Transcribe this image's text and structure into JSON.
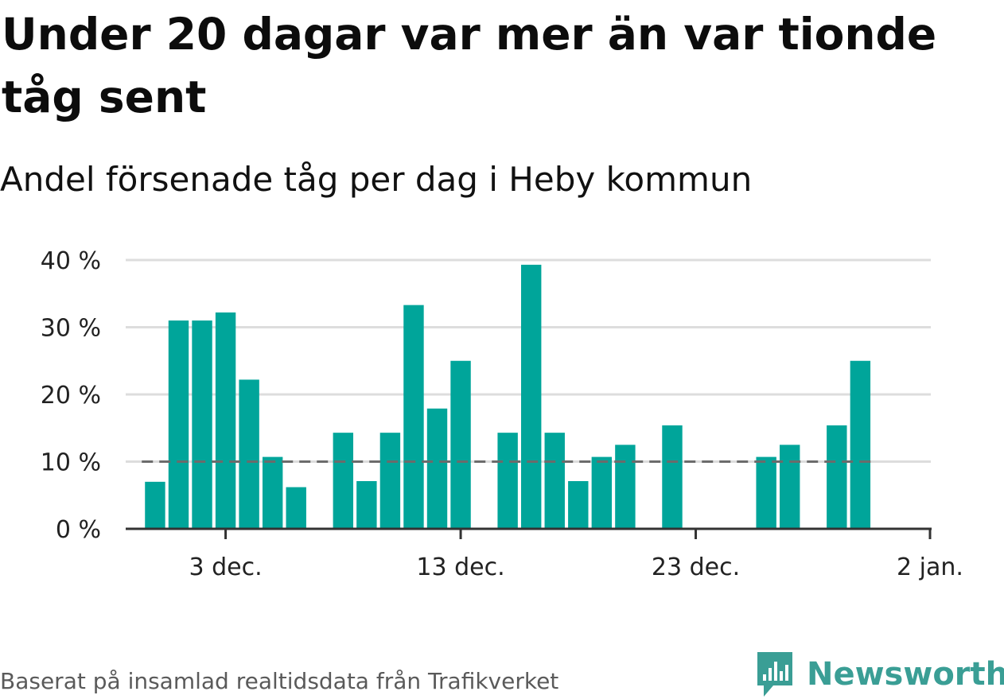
{
  "title": "Under 20 dagar var mer än var tionde tåg sent",
  "subtitle": "Andel försenade tåg per dag i Heby kommun",
  "source": "Baserat på insamlad realtidsdata från Trafikverket",
  "brand": {
    "name": "Newsworthy",
    "icon": "newsworthy-logo-icon",
    "color": "#3a9e95"
  },
  "colors": {
    "bar": "#00a59a",
    "reference": "#6b6b6b",
    "grid": "#dddddd",
    "axis": "#333333"
  },
  "chart_data": {
    "type": "bar",
    "title": "Under 20 dagar var mer än var tionde tåg sent",
    "subtitle": "Andel försenade tåg per dag i Heby kommun",
    "xlabel": "",
    "ylabel": "",
    "x_range": [
      "2024-11-29",
      "2025-01-02"
    ],
    "ylim": [
      0,
      40
    ],
    "yticks": [
      0,
      10,
      20,
      30,
      40
    ],
    "ytick_labels": [
      "0 %",
      "10 %",
      "20 %",
      "30 %",
      "40 %"
    ],
    "xticks": [
      {
        "date": "2024-12-03",
        "label": "3 dec."
      },
      {
        "date": "2024-12-13",
        "label": "13 dec."
      },
      {
        "date": "2024-12-23",
        "label": "23 dec."
      },
      {
        "date": "2025-01-02",
        "label": "2 jan."
      }
    ],
    "reference_line": {
      "value": 10,
      "style": "dashed"
    },
    "grid": true,
    "legend": "none",
    "series": [
      {
        "points": [
          {
            "date": "2024-11-30",
            "value": 7
          },
          {
            "date": "2024-12-01",
            "value": 31
          },
          {
            "date": "2024-12-02",
            "value": 31
          },
          {
            "date": "2024-12-03",
            "value": 32.2
          },
          {
            "date": "2024-12-04",
            "value": 22.2
          },
          {
            "date": "2024-12-05",
            "value": 10.7
          },
          {
            "date": "2024-12-06",
            "value": 6.2
          },
          {
            "date": "2024-12-07",
            "value": 0
          },
          {
            "date": "2024-12-08",
            "value": 14.3
          },
          {
            "date": "2024-12-09",
            "value": 7.1
          },
          {
            "date": "2024-12-10",
            "value": 14.3
          },
          {
            "date": "2024-12-11",
            "value": 33.3
          },
          {
            "date": "2024-12-12",
            "value": 17.9
          },
          {
            "date": "2024-12-13",
            "value": 25
          },
          {
            "date": "2024-12-14",
            "value": 0
          },
          {
            "date": "2024-12-15",
            "value": 14.3
          },
          {
            "date": "2024-12-16",
            "value": 39.3
          },
          {
            "date": "2024-12-17",
            "value": 14.3
          },
          {
            "date": "2024-12-18",
            "value": 7.1
          },
          {
            "date": "2024-12-19",
            "value": 10.7
          },
          {
            "date": "2024-12-20",
            "value": 12.5
          },
          {
            "date": "2024-12-21",
            "value": 0
          },
          {
            "date": "2024-12-22",
            "value": 15.4
          },
          {
            "date": "2024-12-23",
            "value": 0
          },
          {
            "date": "2024-12-24",
            "value": 0
          },
          {
            "date": "2024-12-25",
            "value": 0
          },
          {
            "date": "2024-12-26",
            "value": 10.7
          },
          {
            "date": "2024-12-27",
            "value": 12.5
          },
          {
            "date": "2024-12-28",
            "value": 0
          },
          {
            "date": "2024-12-29",
            "value": 15.4
          },
          {
            "date": "2024-12-30",
            "value": 25
          }
        ]
      }
    ]
  }
}
